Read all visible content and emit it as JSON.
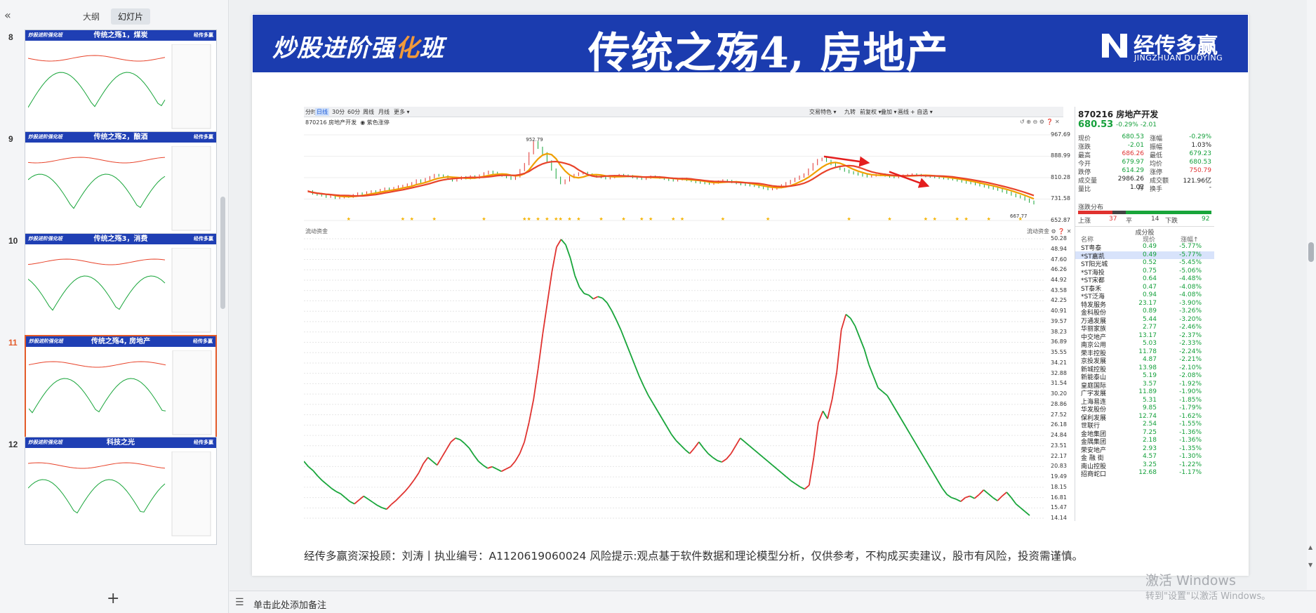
{
  "sidebar": {
    "collapse_icon": "«",
    "tabs": [
      {
        "label": "大纲"
      },
      {
        "label": "幻灯片"
      }
    ],
    "add_icon": "+",
    "thumbnails": [
      {
        "number": "8",
        "title": "传统之殇1，煤炭",
        "brand_left": "炒股进阶强化班",
        "brand_right": "经传多赢"
      },
      {
        "number": "9",
        "title": "传统之殇2，酿酒",
        "brand_left": "炒股进阶强化班",
        "brand_right": "经传多赢"
      },
      {
        "number": "10",
        "title": "传统之殇3，消费",
        "brand_left": "炒股进阶强化班",
        "brand_right": "经传多赢"
      },
      {
        "number": "11",
        "title": "传统之殇4, 房地产",
        "brand_left": "炒股进阶强化班",
        "brand_right": "经传多赢"
      },
      {
        "number": "12",
        "title": "科技之光",
        "brand_left": "炒股进阶强化班",
        "brand_right": "经传多赢"
      }
    ]
  },
  "slide": {
    "banner_left_1": "炒股进阶强",
    "banner_left_2": "化",
    "banner_left_3": "班",
    "title": "传统之殇4, 房地产",
    "brand_name": "经传多赢",
    "brand_sub": "JINGZHUAN DUOYING",
    "disclaimer": "经传多赢资深投顾：刘涛丨执业编号：A1120619060024   风险提示:观点基于软件数据和理论模型分析，仅供参考，不构成买卖建议，股市有风险，投资需谨慎。"
  },
  "chart_toolbar": {
    "left": [
      "分时 ▾",
      "日线",
      "30分",
      "60分",
      "周线",
      "月线",
      "更多 ▾"
    ],
    "right": [
      "交易特色 ▾",
      "九转",
      "前复权 ▾",
      "叠加 ▾",
      "画线",
      "+ 自选 ▾"
    ],
    "selected": "日线",
    "stock_line": "870216 房地产开发",
    "stock_toggle": "◉ 紫色涨停",
    "flow_label": "流动资金",
    "flow_label_right": "流动资金 ⚙ ❓ ✕",
    "top_icons": "↺ ⊕ ⊖ ⚙ ❓ ✕"
  },
  "chart_data": [
    {
      "type": "line",
      "name": "870216 房地产开发 日线",
      "ylim": [
        652.87,
        967.69
      ],
      "y_ticks": [
        "967.69",
        "888.99",
        "810.28",
        "731.58",
        "652.87"
      ],
      "annotations": [
        "952.79",
        "667.77"
      ],
      "close": [
        760,
        752,
        748,
        745,
        740,
        744,
        736,
        738,
        742,
        740,
        746,
        752,
        750,
        756,
        760,
        758,
        765,
        770,
        768,
        772,
        778,
        780,
        785,
        790,
        800,
        795,
        805,
        812,
        820,
        818,
        815,
        808,
        800,
        806,
        812,
        808,
        815,
        810,
        818,
        826,
        832,
        828,
        822,
        818,
        812,
        806,
        815,
        838,
        860,
        900,
        940,
        920,
        900,
        870,
        840,
        810,
        790,
        800,
        812,
        820,
        826,
        828,
        822,
        818,
        814,
        812,
        808,
        812,
        816,
        820,
        818,
        816,
        812,
        808,
        806,
        810,
        814,
        812,
        810,
        806,
        802,
        800,
        804,
        806,
        802,
        798,
        794,
        792,
        790,
        788,
        792,
        796,
        800,
        798,
        794,
        790,
        786,
        784,
        782,
        780,
        776,
        772,
        768,
        770,
        775,
        782,
        790,
        798,
        806,
        814,
        822,
        840,
        860,
        875,
        880,
        872,
        860,
        850,
        842,
        836,
        830,
        826,
        822,
        818,
        815,
        818,
        820,
        822,
        818,
        814,
        812,
        815,
        818,
        820,
        822,
        820,
        818,
        816,
        814,
        812,
        810,
        808,
        806,
        804,
        800,
        796,
        792,
        790,
        786,
        782,
        778,
        774,
        770,
        766,
        760,
        755,
        748,
        742,
        738,
        730,
        722,
        716
      ],
      "ma_fast_color": "#f0a000",
      "ma_slow_color": "#e8432a",
      "signal_color": "#f5b300",
      "arrow_color": "#e41e1e"
    },
    {
      "type": "line",
      "name": "流动资金",
      "ylim": [
        14.14,
        50.28
      ],
      "y_ticks": [
        "50.28",
        "48.94",
        "47.60",
        "46.26",
        "44.92",
        "43.58",
        "42.25",
        "40.91",
        "39.57",
        "38.23",
        "36.89",
        "35.55",
        "34.21",
        "32.88",
        "31.54",
        "30.20",
        "28.86",
        "27.52",
        "26.18",
        "24.84",
        "23.51",
        "22.17",
        "20.83",
        "19.49",
        "18.15",
        "16.81",
        "15.47",
        "14.14"
      ],
      "values": [
        21.5,
        20.8,
        20.3,
        19.6,
        19.0,
        18.5,
        18.0,
        17.6,
        17.3,
        16.8,
        16.3,
        16.0,
        16.5,
        17.0,
        16.6,
        16.2,
        15.8,
        15.5,
        15.3,
        15.9,
        16.4,
        17.0,
        17.6,
        18.3,
        19.1,
        20.0,
        21.2,
        22.0,
        21.5,
        21.0,
        22.0,
        23.0,
        24.0,
        24.5,
        24.3,
        23.8,
        23.2,
        22.3,
        21.5,
        21.0,
        20.6,
        20.8,
        20.5,
        20.2,
        20.5,
        20.8,
        21.5,
        22.5,
        24.0,
        26.5,
        29.5,
        33.5,
        38.0,
        42.0,
        46.0,
        49.2,
        50.2,
        49.5,
        47.8,
        45.5,
        44.0,
        43.2,
        43.0,
        42.5,
        42.8,
        42.6,
        42.0,
        41.0,
        39.8,
        38.5,
        37.0,
        35.5,
        34.0,
        32.5,
        31.2,
        30.0,
        29.0,
        28.0,
        27.0,
        26.0,
        25.0,
        24.2,
        23.6,
        23.0,
        22.5,
        23.2,
        24.0,
        23.2,
        22.5,
        22.0,
        21.6,
        21.4,
        21.8,
        22.5,
        23.5,
        24.5,
        24.0,
        23.5,
        23.0,
        22.5,
        22.0,
        21.5,
        21.0,
        20.5,
        20.0,
        19.5,
        19.0,
        18.6,
        18.2,
        17.9,
        18.4,
        22.0,
        26.5,
        28.0,
        27.0,
        29.5,
        33.0,
        38.5,
        40.5,
        40.0,
        39.0,
        37.5,
        36.0,
        34.0,
        32.5,
        31.0,
        30.5,
        30.0,
        29.0,
        28.0,
        27.0,
        26.0,
        25.0,
        24.0,
        23.0,
        22.0,
        21.0,
        20.0,
        19.0,
        18.0,
        17.2,
        16.8,
        16.6,
        16.3,
        16.8,
        17.0,
        16.7,
        17.2,
        17.8,
        17.3,
        16.8,
        16.4,
        17.0,
        17.5,
        16.8,
        16.0,
        15.5,
        15.0,
        14.5
      ],
      "up_color": "#e0322f",
      "down_color": "#18a53a"
    }
  ],
  "right_panel": {
    "code_name": "870216 房地产开发",
    "price": "680.53",
    "change": "-0.29%  -2.01",
    "quote_rows": [
      {
        "l1": "现价",
        "v1": "680.53",
        "c1": "green",
        "l2": "涨幅",
        "v2": "-0.29%",
        "c2": "green"
      },
      {
        "l1": "涨跌",
        "v1": "-2.01",
        "c1": "green",
        "l2": "振幅",
        "v2": "1.03%",
        "c2": "blk"
      },
      {
        "l1": "最高",
        "v1": "686.26",
        "c1": "red",
        "l2": "最低",
        "v2": "679.23",
        "c2": "green"
      },
      {
        "l1": "今开",
        "v1": "679.97",
        "c1": "green",
        "l2": "均价",
        "v2": "680.53",
        "c2": "green"
      },
      {
        "l1": "跌停",
        "v1": "614.29",
        "c1": "green",
        "l2": "涨停",
        "v2": "750.79",
        "c2": "red"
      },
      {
        "l1": "成交量",
        "v1": "2986.26万",
        "c1": "blk",
        "l2": "成交额",
        "v2": "121.96亿",
        "c2": "blk"
      },
      {
        "l1": "量比",
        "v1": "1.02",
        "c1": "blk",
        "l2": "换手",
        "v2": "-",
        "c2": "blk"
      }
    ],
    "dist_title": "涨跌分布",
    "dist_up_label": "上涨",
    "dist_up": "37",
    "dist_flat_label": "平",
    "dist_flat": "14",
    "dist_down_label": "下跌",
    "dist_down": "92",
    "cons_title": "成分股",
    "cons_headers": {
      "name": "名称",
      "price": "现价",
      "pct": "涨幅↑"
    },
    "constituents": [
      {
        "name": "ST粤泰",
        "price": "0.49",
        "pct": "-5.77%"
      },
      {
        "name": "*ST嘉凯",
        "price": "0.49",
        "pct": "-5.77%"
      },
      {
        "name": "ST阳光城",
        "price": "0.52",
        "pct": "-5.45%"
      },
      {
        "name": "*ST海投",
        "price": "0.75",
        "pct": "-5.06%"
      },
      {
        "name": "*ST宋都",
        "price": "0.64",
        "pct": "-4.48%"
      },
      {
        "name": "ST泰禾",
        "price": "0.47",
        "pct": "-4.08%"
      },
      {
        "name": "*ST泛海",
        "price": "0.94",
        "pct": "-4.08%"
      },
      {
        "name": "特发服务",
        "price": "23.17",
        "pct": "-3.90%"
      },
      {
        "name": "金科股份",
        "price": "0.89",
        "pct": "-3.26%"
      },
      {
        "name": "万通发展",
        "price": "5.44",
        "pct": "-3.20%"
      },
      {
        "name": "华丽家族",
        "price": "2.77",
        "pct": "-2.46%"
      },
      {
        "name": "中交地产",
        "price": "13.17",
        "pct": "-2.37%"
      },
      {
        "name": "南京公用",
        "price": "5.03",
        "pct": "-2.33%"
      },
      {
        "name": "荣丰控股",
        "price": "11.78",
        "pct": "-2.24%"
      },
      {
        "name": "京投发展",
        "price": "4.87",
        "pct": "-2.21%"
      },
      {
        "name": "新城控股",
        "price": "13.98",
        "pct": "-2.10%"
      },
      {
        "name": "新能泰山",
        "price": "5.19",
        "pct": "-2.08%"
      },
      {
        "name": "皇庭国际",
        "price": "3.57",
        "pct": "-1.92%"
      },
      {
        "name": "广宇发展",
        "price": "11.89",
        "pct": "-1.90%"
      },
      {
        "name": "上海易连",
        "price": "5.31",
        "pct": "-1.85%"
      },
      {
        "name": "华发股份",
        "price": "9.85",
        "pct": "-1.79%"
      },
      {
        "name": "保利发展",
        "price": "12.74",
        "pct": "-1.62%"
      },
      {
        "name": "世联行",
        "price": "2.54",
        "pct": "-1.55%"
      },
      {
        "name": "金地集团",
        "price": "7.25",
        "pct": "-1.36%"
      },
      {
        "name": "金隅集团",
        "price": "2.18",
        "pct": "-1.36%"
      },
      {
        "name": "荣安地产",
        "price": "2.93",
        "pct": "-1.35%"
      },
      {
        "name": "金 融 街",
        "price": "4.57",
        "pct": "-1.30%"
      },
      {
        "name": "南山控股",
        "price": "3.25",
        "pct": "-1.22%"
      },
      {
        "name": "招商蛇口",
        "price": "12.68",
        "pct": "-1.17%"
      }
    ]
  },
  "notes": {
    "icon": "☰",
    "placeholder": "单击此处添加备注"
  },
  "watermark": {
    "line1": "激活 Windows",
    "line2": "转到\"设置\"以激活 Windows。"
  }
}
